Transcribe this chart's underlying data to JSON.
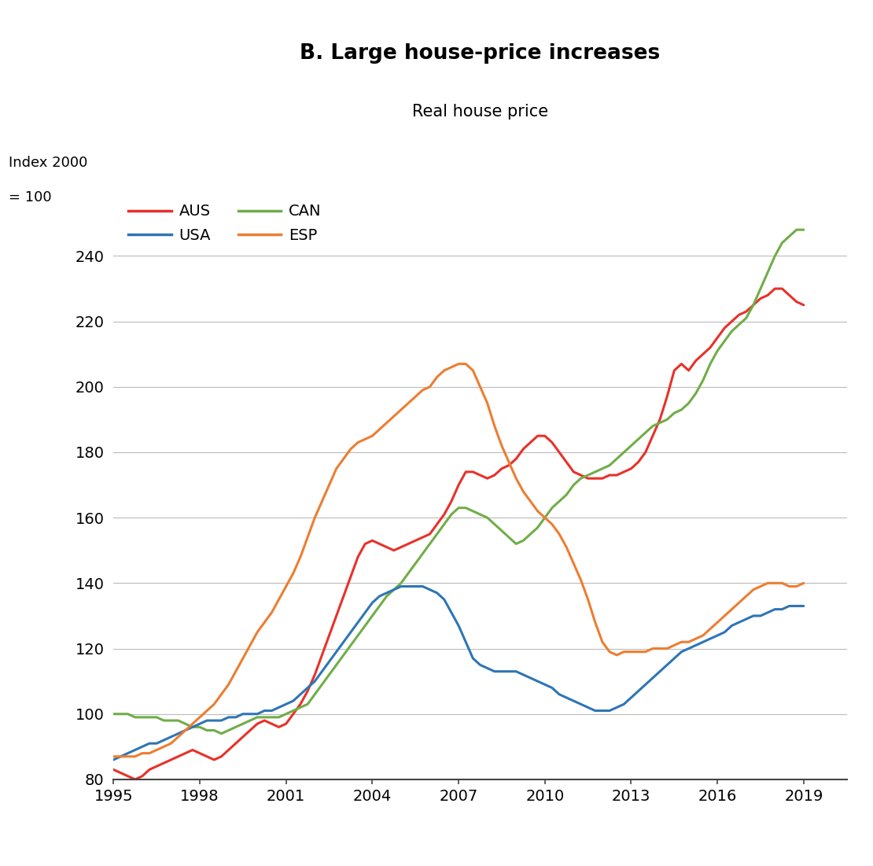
{
  "title": "B. Large house-price increases",
  "subtitle": "Real house price",
  "ylabel_line1": "Index 2000",
  "ylabel_line2": "= 100",
  "xlim": [
    1995,
    2020.5
  ],
  "ylim": [
    80,
    260
  ],
  "yticks": [
    80,
    100,
    120,
    140,
    160,
    180,
    200,
    220,
    240
  ],
  "xticks": [
    1995,
    1998,
    2001,
    2004,
    2007,
    2010,
    2013,
    2016,
    2019
  ],
  "background_color": "#ffffff",
  "grid_color": "#bbbbbb",
  "series": {
    "AUS": {
      "color": "#e8312a",
      "x": [
        1995,
        1995.25,
        1995.5,
        1995.75,
        1996,
        1996.25,
        1996.5,
        1996.75,
        1997,
        1997.25,
        1997.5,
        1997.75,
        1998,
        1998.25,
        1998.5,
        1998.75,
        1999,
        1999.25,
        1999.5,
        1999.75,
        2000,
        2000.25,
        2000.5,
        2000.75,
        2001,
        2001.25,
        2001.5,
        2001.75,
        2002,
        2002.25,
        2002.5,
        2002.75,
        2003,
        2003.25,
        2003.5,
        2003.75,
        2004,
        2004.25,
        2004.5,
        2004.75,
        2005,
        2005.25,
        2005.5,
        2005.75,
        2006,
        2006.25,
        2006.5,
        2006.75,
        2007,
        2007.25,
        2007.5,
        2007.75,
        2008,
        2008.25,
        2008.5,
        2008.75,
        2009,
        2009.25,
        2009.5,
        2009.75,
        2010,
        2010.25,
        2010.5,
        2010.75,
        2011,
        2011.25,
        2011.5,
        2011.75,
        2012,
        2012.25,
        2012.5,
        2012.75,
        2013,
        2013.25,
        2013.5,
        2013.75,
        2014,
        2014.25,
        2014.5,
        2014.75,
        2015,
        2015.25,
        2015.5,
        2015.75,
        2016,
        2016.25,
        2016.5,
        2016.75,
        2017,
        2017.25,
        2017.5,
        2017.75,
        2018,
        2018.25,
        2018.5,
        2018.75,
        2019
      ],
      "y": [
        83,
        82,
        81,
        80,
        81,
        83,
        84,
        85,
        86,
        87,
        88,
        89,
        88,
        87,
        86,
        87,
        89,
        91,
        93,
        95,
        97,
        98,
        97,
        96,
        97,
        100,
        103,
        107,
        112,
        118,
        124,
        130,
        136,
        142,
        148,
        152,
        153,
        152,
        151,
        150,
        151,
        152,
        153,
        154,
        155,
        158,
        161,
        165,
        170,
        174,
        174,
        173,
        172,
        173,
        175,
        176,
        178,
        181,
        183,
        185,
        185,
        183,
        180,
        177,
        174,
        173,
        172,
        172,
        172,
        173,
        173,
        174,
        175,
        177,
        180,
        185,
        190,
        197,
        205,
        207,
        205,
        208,
        210,
        212,
        215,
        218,
        220,
        222,
        223,
        225,
        227,
        228,
        230,
        230,
        228,
        226,
        225
      ]
    },
    "CAN": {
      "color": "#70ad47",
      "x": [
        1995,
        1995.25,
        1995.5,
        1995.75,
        1996,
        1996.25,
        1996.5,
        1996.75,
        1997,
        1997.25,
        1997.5,
        1997.75,
        1998,
        1998.25,
        1998.5,
        1998.75,
        1999,
        1999.25,
        1999.5,
        1999.75,
        2000,
        2000.25,
        2000.5,
        2000.75,
        2001,
        2001.25,
        2001.5,
        2001.75,
        2002,
        2002.25,
        2002.5,
        2002.75,
        2003,
        2003.25,
        2003.5,
        2003.75,
        2004,
        2004.25,
        2004.5,
        2004.75,
        2005,
        2005.25,
        2005.5,
        2005.75,
        2006,
        2006.25,
        2006.5,
        2006.75,
        2007,
        2007.25,
        2007.5,
        2007.75,
        2008,
        2008.25,
        2008.5,
        2008.75,
        2009,
        2009.25,
        2009.5,
        2009.75,
        2010,
        2010.25,
        2010.5,
        2010.75,
        2011,
        2011.25,
        2011.5,
        2011.75,
        2012,
        2012.25,
        2012.5,
        2012.75,
        2013,
        2013.25,
        2013.5,
        2013.75,
        2014,
        2014.25,
        2014.5,
        2014.75,
        2015,
        2015.25,
        2015.5,
        2015.75,
        2016,
        2016.25,
        2016.5,
        2016.75,
        2017,
        2017.25,
        2017.5,
        2017.75,
        2018,
        2018.25,
        2018.5,
        2018.75,
        2019
      ],
      "y": [
        100,
        100,
        100,
        99,
        99,
        99,
        99,
        98,
        98,
        98,
        97,
        96,
        96,
        95,
        95,
        94,
        95,
        96,
        97,
        98,
        99,
        99,
        99,
        99,
        100,
        101,
        102,
        103,
        106,
        109,
        112,
        115,
        118,
        121,
        124,
        127,
        130,
        133,
        136,
        138,
        140,
        143,
        146,
        149,
        152,
        155,
        158,
        161,
        163,
        163,
        162,
        161,
        160,
        158,
        156,
        154,
        152,
        153,
        155,
        157,
        160,
        163,
        165,
        167,
        170,
        172,
        173,
        174,
        175,
        176,
        178,
        180,
        182,
        184,
        186,
        188,
        189,
        190,
        192,
        193,
        195,
        198,
        202,
        207,
        211,
        214,
        217,
        219,
        221,
        225,
        230,
        235,
        240,
        244,
        246,
        248,
        248
      ]
    },
    "USA": {
      "color": "#2e75b6",
      "x": [
        1995,
        1995.25,
        1995.5,
        1995.75,
        1996,
        1996.25,
        1996.5,
        1996.75,
        1997,
        1997.25,
        1997.5,
        1997.75,
        1998,
        1998.25,
        1998.5,
        1998.75,
        1999,
        1999.25,
        1999.5,
        1999.75,
        2000,
        2000.25,
        2000.5,
        2000.75,
        2001,
        2001.25,
        2001.5,
        2001.75,
        2002,
        2002.25,
        2002.5,
        2002.75,
        2003,
        2003.25,
        2003.5,
        2003.75,
        2004,
        2004.25,
        2004.5,
        2004.75,
        2005,
        2005.25,
        2005.5,
        2005.75,
        2006,
        2006.25,
        2006.5,
        2006.75,
        2007,
        2007.25,
        2007.5,
        2007.75,
        2008,
        2008.25,
        2008.5,
        2008.75,
        2009,
        2009.25,
        2009.5,
        2009.75,
        2010,
        2010.25,
        2010.5,
        2010.75,
        2011,
        2011.25,
        2011.5,
        2011.75,
        2012,
        2012.25,
        2012.5,
        2012.75,
        2013,
        2013.25,
        2013.5,
        2013.75,
        2014,
        2014.25,
        2014.5,
        2014.75,
        2015,
        2015.25,
        2015.5,
        2015.75,
        2016,
        2016.25,
        2016.5,
        2016.75,
        2017,
        2017.25,
        2017.5,
        2017.75,
        2018,
        2018.25,
        2018.5,
        2018.75,
        2019
      ],
      "y": [
        86,
        87,
        88,
        89,
        90,
        91,
        91,
        92,
        93,
        94,
        95,
        96,
        97,
        98,
        98,
        98,
        99,
        99,
        100,
        100,
        100,
        101,
        101,
        102,
        103,
        104,
        106,
        108,
        110,
        113,
        116,
        119,
        122,
        125,
        128,
        131,
        134,
        136,
        137,
        138,
        139,
        139,
        139,
        139,
        138,
        137,
        135,
        131,
        127,
        122,
        117,
        115,
        114,
        113,
        113,
        113,
        113,
        112,
        111,
        110,
        109,
        108,
        106,
        105,
        104,
        103,
        102,
        101,
        101,
        101,
        102,
        103,
        105,
        107,
        109,
        111,
        113,
        115,
        117,
        119,
        120,
        121,
        122,
        123,
        124,
        125,
        127,
        128,
        129,
        130,
        130,
        131,
        132,
        132,
        133,
        133,
        133
      ]
    },
    "ESP": {
      "color": "#ed7d31",
      "x": [
        1995,
        1995.25,
        1995.5,
        1995.75,
        1996,
        1996.25,
        1996.5,
        1996.75,
        1997,
        1997.25,
        1997.5,
        1997.75,
        1998,
        1998.25,
        1998.5,
        1998.75,
        1999,
        1999.25,
        1999.5,
        1999.75,
        2000,
        2000.25,
        2000.5,
        2000.75,
        2001,
        2001.25,
        2001.5,
        2001.75,
        2002,
        2002.25,
        2002.5,
        2002.75,
        2003,
        2003.25,
        2003.5,
        2003.75,
        2004,
        2004.25,
        2004.5,
        2004.75,
        2005,
        2005.25,
        2005.5,
        2005.75,
        2006,
        2006.25,
        2006.5,
        2006.75,
        2007,
        2007.25,
        2007.5,
        2007.75,
        2008,
        2008.25,
        2008.5,
        2008.75,
        2009,
        2009.25,
        2009.5,
        2009.75,
        2010,
        2010.25,
        2010.5,
        2010.75,
        2011,
        2011.25,
        2011.5,
        2011.75,
        2012,
        2012.25,
        2012.5,
        2012.75,
        2013,
        2013.25,
        2013.5,
        2013.75,
        2014,
        2014.25,
        2014.5,
        2014.75,
        2015,
        2015.25,
        2015.5,
        2015.75,
        2016,
        2016.25,
        2016.5,
        2016.75,
        2017,
        2017.25,
        2017.5,
        2017.75,
        2018,
        2018.25,
        2018.5,
        2018.75,
        2019
      ],
      "y": [
        87,
        87,
        87,
        87,
        88,
        88,
        89,
        90,
        91,
        93,
        95,
        97,
        99,
        101,
        103,
        106,
        109,
        113,
        117,
        121,
        125,
        128,
        131,
        135,
        139,
        143,
        148,
        154,
        160,
        165,
        170,
        175,
        178,
        181,
        183,
        184,
        185,
        187,
        189,
        191,
        193,
        195,
        197,
        199,
        200,
        203,
        205,
        206,
        207,
        207,
        205,
        200,
        195,
        188,
        182,
        177,
        172,
        168,
        165,
        162,
        160,
        158,
        155,
        151,
        146,
        141,
        135,
        128,
        122,
        119,
        118,
        119,
        119,
        119,
        119,
        120,
        120,
        120,
        121,
        122,
        122,
        123,
        124,
        126,
        128,
        130,
        132,
        134,
        136,
        138,
        139,
        140,
        140,
        140,
        139,
        139,
        140
      ]
    }
  }
}
